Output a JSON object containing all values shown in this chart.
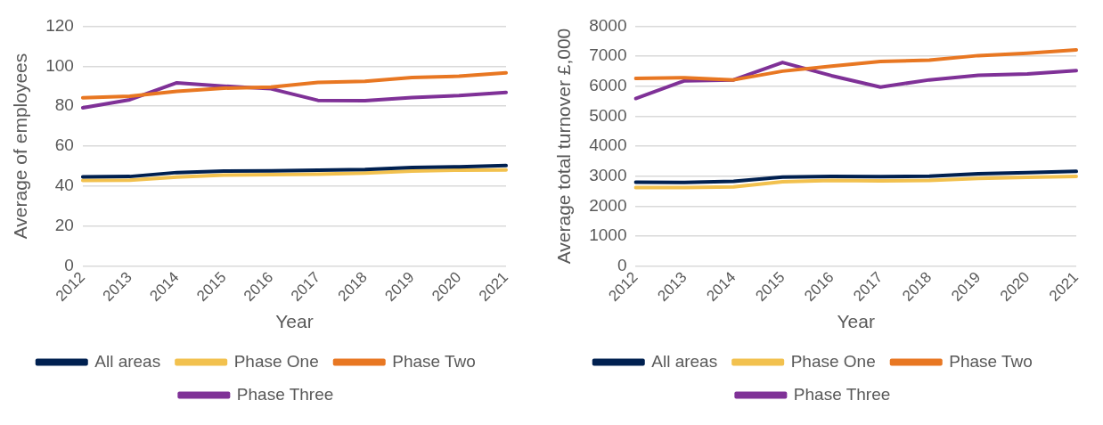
{
  "chart_data": [
    {
      "type": "line",
      "xlabel": "Year",
      "ylabel": "Average of employees",
      "categories": [
        "2012",
        "2013",
        "2014",
        "2015",
        "2016",
        "2017",
        "2018",
        "2019",
        "2020",
        "2021"
      ],
      "ylim": [
        0,
        120
      ],
      "yticks": [
        0,
        20,
        40,
        60,
        80,
        100,
        120
      ],
      "grid": "y",
      "legend": "bottom",
      "marker": "none",
      "line_style": "solid",
      "series": [
        {
          "name": "All areas",
          "color": "#002050",
          "values": [
            44.6,
            44.8,
            46.8,
            47.5,
            47.6,
            48,
            48.3,
            49.3,
            49.7,
            50.3
          ]
        },
        {
          "name": "Phase One",
          "color": "#f2c14e",
          "values": [
            42.8,
            43,
            44.5,
            45.5,
            45.7,
            46,
            46.5,
            47.5,
            48,
            48.1
          ]
        },
        {
          "name": "Phase Two",
          "color": "#e87722",
          "values": [
            84.2,
            85,
            87.4,
            89,
            89.5,
            91.9,
            92.4,
            94.3,
            95,
            96.7
          ]
        },
        {
          "name": "Phase Three",
          "color": "#7f3197",
          "values": [
            79.2,
            83.2,
            91.7,
            90,
            88.7,
            82.9,
            82.7,
            84.3,
            85.3,
            86.9
          ]
        }
      ]
    },
    {
      "type": "line",
      "xlabel": "Year",
      "ylabel": "Average total turnover £,000",
      "categories": [
        "2012",
        "2013",
        "2014",
        "2015",
        "2016",
        "2017",
        "2018",
        "2019",
        "2020",
        "2021"
      ],
      "ylim": [
        0,
        8000
      ],
      "yticks": [
        0,
        1000,
        2000,
        3000,
        4000,
        5000,
        6000,
        7000,
        8000
      ],
      "grid": "y",
      "legend": "bottom",
      "marker": "none",
      "line_style": "solid",
      "series": [
        {
          "name": "All areas",
          "color": "#002050",
          "values": [
            2800,
            2790,
            2830,
            2970,
            2990,
            2980,
            3000,
            3080,
            3120,
            3160
          ]
        },
        {
          "name": "Phase One",
          "color": "#f2c14e",
          "values": [
            2620,
            2620,
            2640,
            2810,
            2860,
            2840,
            2860,
            2920,
            2960,
            2990
          ]
        },
        {
          "name": "Phase Two",
          "color": "#e87722",
          "values": [
            6260,
            6280,
            6210,
            6500,
            6670,
            6820,
            6870,
            7020,
            7100,
            7210
          ]
        },
        {
          "name": "Phase Three",
          "color": "#7f3197",
          "values": [
            5590,
            6180,
            6210,
            6790,
            6350,
            5970,
            6210,
            6360,
            6410,
            6520
          ]
        }
      ]
    }
  ]
}
